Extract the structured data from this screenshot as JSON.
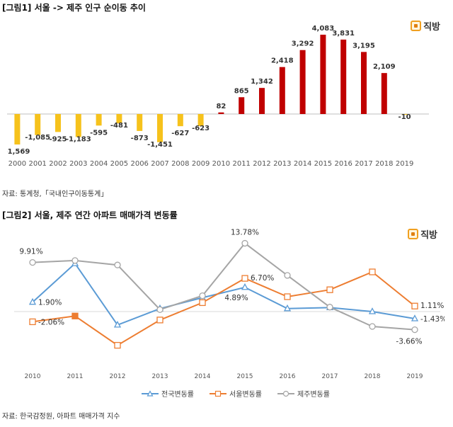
{
  "chart1": {
    "title": "[그림1] 서울 -> 제주  인구 순이동 추이",
    "source": "자료: 통계청,「국내인구이동통계」",
    "logo": "직방",
    "colors": {
      "positive": "#c00000",
      "negative": "#f6c21c"
    },
    "chart_data": {
      "type": "bar",
      "title": "서울 -> 제주 인구 순이동 추이",
      "categories": [
        "2000",
        "2001",
        "2002",
        "2003",
        "2004",
        "2005",
        "2006",
        "2007",
        "2008",
        "2009",
        "2010",
        "2011",
        "2012",
        "2013",
        "2014",
        "2015",
        "2016",
        "2017",
        "2018",
        "2019"
      ],
      "values": [
        -1569,
        -1085,
        -925,
        -1183,
        -595,
        -481,
        -873,
        -1451,
        -627,
        -623,
        82,
        865,
        1342,
        2418,
        3292,
        4083,
        3831,
        3195,
        2109,
        -10
      ],
      "labels": [
        "-1,569",
        "-1,085",
        "-925",
        "-1,183",
        "-595",
        "-481",
        "-873",
        "-1,451",
        "-627",
        "-623",
        "82",
        "865",
        "1,342",
        "2,418",
        "3,292",
        "4,083",
        "3,831",
        "3,195",
        "2,109",
        "-10"
      ],
      "ylim": [
        -2000,
        4500
      ],
      "xlabel": "",
      "ylabel": ""
    }
  },
  "chart2": {
    "title": "[그림2] 서울, 제주 연간 아파트 매매가격 변동률",
    "source": "자료: 한국감정원, 아파트 매매가격 지수",
    "logo": "직방",
    "chart_data": {
      "type": "line",
      "title": "서울, 제주 연간 아파트 매매가격 변동률",
      "categories": [
        "2010",
        "2011",
        "2012",
        "2013",
        "2014",
        "2015",
        "2016",
        "2017",
        "2018",
        "2019"
      ],
      "ylim": [
        -8,
        15
      ],
      "series": [
        {
          "name": "전국변동률",
          "color": "#5b9bd5",
          "marker": "triangle",
          "values": [
            1.9,
            9.7,
            -2.7,
            0.6,
            2.8,
            4.89,
            0.6,
            0.8,
            0.0,
            -1.43
          ]
        },
        {
          "name": "서울변동률",
          "color": "#ed7d31",
          "marker": "square",
          "values": [
            -2.06,
            -0.9,
            -6.8,
            -1.7,
            1.8,
            6.7,
            3.0,
            4.4,
            8.0,
            1.11
          ]
        },
        {
          "name": "제주변동률",
          "color": "#a5a5a5",
          "marker": "circle",
          "values": [
            9.91,
            10.3,
            9.4,
            0.4,
            3.2,
            13.78,
            7.3,
            0.9,
            -3.0,
            -3.66
          ]
        }
      ],
      "annotations": [
        {
          "series": 0,
          "index": 0,
          "text": "1.90%"
        },
        {
          "series": 1,
          "index": 0,
          "text": "-2.06%"
        },
        {
          "series": 2,
          "index": 0,
          "text": "9.91%"
        },
        {
          "series": 2,
          "index": 5,
          "text": "13.78%"
        },
        {
          "series": 1,
          "index": 5,
          "text": "6.70%"
        },
        {
          "series": 0,
          "index": 5,
          "text": "4.89%"
        },
        {
          "series": 1,
          "index": 9,
          "text": "1.11%"
        },
        {
          "series": 0,
          "index": 9,
          "text": "-1.43%"
        },
        {
          "series": 2,
          "index": 9,
          "text": "-3.66%"
        }
      ]
    }
  }
}
